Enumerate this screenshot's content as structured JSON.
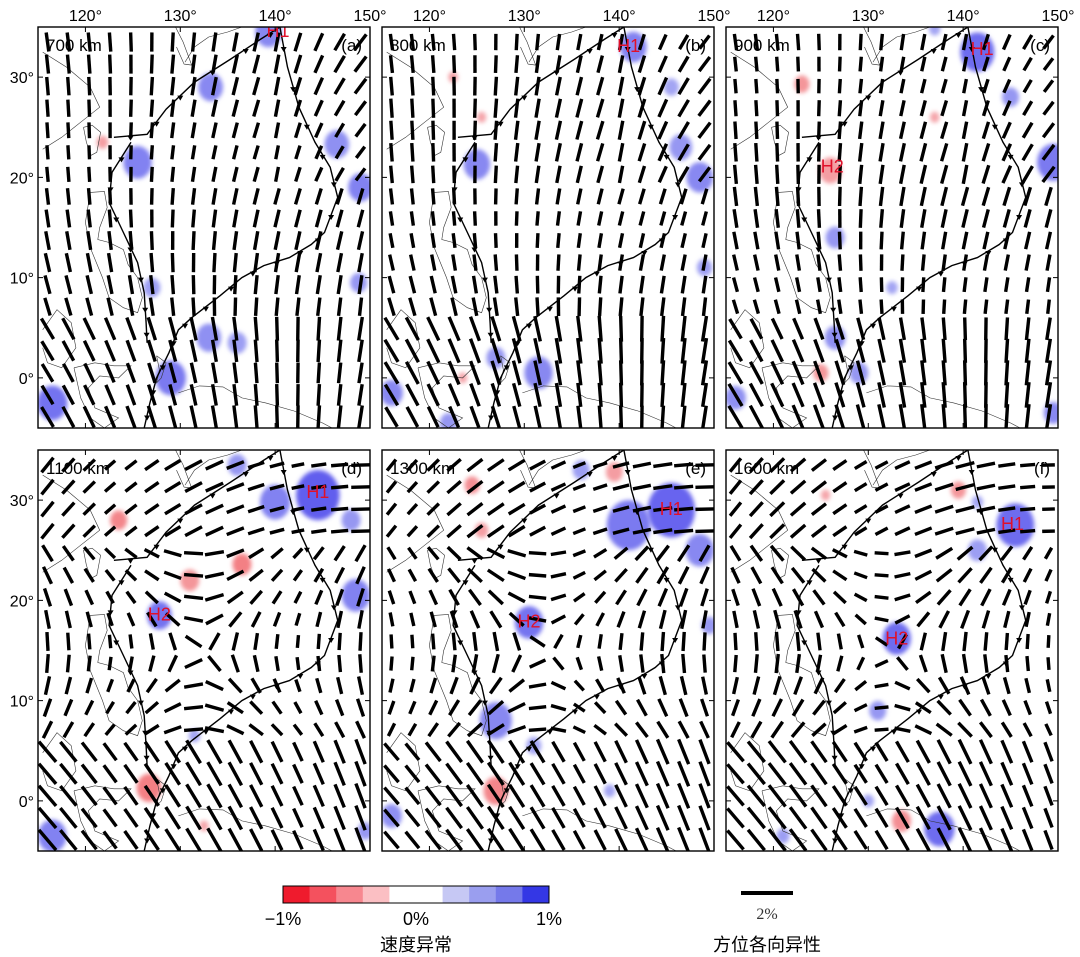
{
  "figure": {
    "lon_ticks": [
      "120°",
      "130°",
      "140°",
      "150°"
    ],
    "lat_ticks": [
      "30°",
      "20°",
      "10°",
      "0°"
    ],
    "lon_range": [
      115,
      150
    ],
    "lat_range": [
      -5,
      35
    ],
    "panels": [
      {
        "letter": "(a)",
        "depth": "700 km",
        "labels": [
          {
            "text": "H1",
            "lon": 140.3,
            "lat": 34.0
          }
        ],
        "anomalies": [
          {
            "lon": 139.3,
            "lat": 34.5,
            "r": 1.4,
            "v": 0.5
          },
          {
            "lon": 133.2,
            "lat": 29.0,
            "r": 1.3,
            "v": 0.5
          },
          {
            "lon": 125.5,
            "lat": 21.5,
            "r": 1.5,
            "v": 0.55
          },
          {
            "lon": 146.5,
            "lat": 23.3,
            "r": 1.3,
            "v": 0.45
          },
          {
            "lon": 149.0,
            "lat": 19.0,
            "r": 1.3,
            "v": 0.55
          },
          {
            "lon": 127.0,
            "lat": 9.0,
            "r": 0.9,
            "v": 0.35
          },
          {
            "lon": 148.8,
            "lat": 9.5,
            "r": 0.9,
            "v": 0.4
          },
          {
            "lon": 133.0,
            "lat": 4.0,
            "r": 1.3,
            "v": 0.45
          },
          {
            "lon": 136.0,
            "lat": 3.5,
            "r": 1.0,
            "v": 0.35
          },
          {
            "lon": 129.0,
            "lat": 0.0,
            "r": 1.6,
            "v": 0.6
          },
          {
            "lon": 116.5,
            "lat": -2.5,
            "r": 1.6,
            "v": 0.65
          },
          {
            "lon": 121.8,
            "lat": 23.5,
            "r": 0.6,
            "v": -0.3
          }
        ]
      },
      {
        "letter": "(b)",
        "depth": "800 km",
        "labels": [
          {
            "text": "H1",
            "lon": 141.0,
            "lat": 32.5
          }
        ],
        "anomalies": [
          {
            "lon": 141.5,
            "lat": 33.0,
            "r": 1.4,
            "v": 0.55
          },
          {
            "lon": 145.5,
            "lat": 29.0,
            "r": 0.8,
            "v": 0.3
          },
          {
            "lon": 125.0,
            "lat": 21.3,
            "r": 1.4,
            "v": 0.5
          },
          {
            "lon": 146.5,
            "lat": 23.0,
            "r": 1.2,
            "v": 0.4
          },
          {
            "lon": 148.5,
            "lat": 20.0,
            "r": 1.4,
            "v": 0.5
          },
          {
            "lon": 149.0,
            "lat": 11.0,
            "r": 0.8,
            "v": 0.35
          },
          {
            "lon": 131.5,
            "lat": 0.5,
            "r": 1.5,
            "v": 0.5
          },
          {
            "lon": 127.0,
            "lat": 2.0,
            "r": 1.0,
            "v": 0.4
          },
          {
            "lon": 116.0,
            "lat": -1.5,
            "r": 1.2,
            "v": 0.5
          },
          {
            "lon": 122.0,
            "lat": -4.5,
            "r": 0.9,
            "v": 0.4
          },
          {
            "lon": 122.5,
            "lat": 30.0,
            "r": 0.5,
            "v": -0.3
          },
          {
            "lon": 125.5,
            "lat": 26.0,
            "r": 0.5,
            "v": -0.25
          },
          {
            "lon": 123.5,
            "lat": 0.0,
            "r": 0.5,
            "v": -0.25
          }
        ]
      },
      {
        "letter": "(c)",
        "depth": "900 km",
        "labels": [
          {
            "text": "H1",
            "lon": 142.0,
            "lat": 32.2
          },
          {
            "text": "H2",
            "lon": 126.2,
            "lat": 20.5
          }
        ],
        "anomalies": [
          {
            "lon": 141.5,
            "lat": 32.5,
            "r": 1.8,
            "v": 0.7
          },
          {
            "lon": 137.0,
            "lat": 34.8,
            "r": 0.6,
            "v": 0.3
          },
          {
            "lon": 145.0,
            "lat": 28.0,
            "r": 0.9,
            "v": 0.4
          },
          {
            "lon": 149.5,
            "lat": 21.5,
            "r": 1.7,
            "v": 0.6
          },
          {
            "lon": 126.0,
            "lat": 20.7,
            "r": 1.2,
            "v": -0.3
          },
          {
            "lon": 123.0,
            "lat": 29.3,
            "r": 0.8,
            "v": -0.35
          },
          {
            "lon": 137.0,
            "lat": 26.0,
            "r": 0.5,
            "v": -0.25
          },
          {
            "lon": 126.5,
            "lat": 14.0,
            "r": 1.0,
            "v": 0.4
          },
          {
            "lon": 126.5,
            "lat": 4.0,
            "r": 1.1,
            "v": 0.45
          },
          {
            "lon": 129.0,
            "lat": 0.5,
            "r": 1.0,
            "v": 0.4
          },
          {
            "lon": 125.0,
            "lat": 0.5,
            "r": 0.8,
            "v": -0.35
          },
          {
            "lon": 149.5,
            "lat": -3.5,
            "r": 1.0,
            "v": 0.5
          },
          {
            "lon": 116.0,
            "lat": -2.0,
            "r": 1.1,
            "v": 0.45
          },
          {
            "lon": 132.5,
            "lat": 9.0,
            "r": 0.6,
            "v": 0.3
          }
        ]
      },
      {
        "letter": "(d)",
        "depth": "1100 km",
        "labels": [
          {
            "text": "H1",
            "lon": 144.5,
            "lat": 30.2
          },
          {
            "text": "H2",
            "lon": 127.8,
            "lat": 18.0
          }
        ],
        "anomalies": [
          {
            "lon": 144.5,
            "lat": 30.5,
            "r": 2.3,
            "v": 0.8
          },
          {
            "lon": 140.0,
            "lat": 29.8,
            "r": 1.6,
            "v": 0.55
          },
          {
            "lon": 136.0,
            "lat": 33.5,
            "r": 1.0,
            "v": 0.4
          },
          {
            "lon": 148.0,
            "lat": 28.0,
            "r": 1.0,
            "v": 0.4
          },
          {
            "lon": 148.5,
            "lat": 20.5,
            "r": 1.5,
            "v": 0.55
          },
          {
            "lon": 127.8,
            "lat": 18.5,
            "r": 1.3,
            "v": 0.65
          },
          {
            "lon": 123.5,
            "lat": 28.0,
            "r": 0.9,
            "v": -0.45
          },
          {
            "lon": 131.0,
            "lat": 22.0,
            "r": 1.0,
            "v": -0.35
          },
          {
            "lon": 136.5,
            "lat": 23.6,
            "r": 1.0,
            "v": -0.5
          },
          {
            "lon": 126.7,
            "lat": 1.3,
            "r": 1.3,
            "v": -0.5
          },
          {
            "lon": 131.5,
            "lat": 6.5,
            "r": 0.6,
            "v": 0.3
          },
          {
            "lon": 116.5,
            "lat": -3.5,
            "r": 1.5,
            "v": 0.55
          },
          {
            "lon": 149.5,
            "lat": -3.0,
            "r": 0.8,
            "v": 0.4
          },
          {
            "lon": 132.5,
            "lat": -2.5,
            "r": 0.5,
            "v": -0.25
          }
        ]
      },
      {
        "letter": "(e)",
        "depth": "1300 km",
        "labels": [
          {
            "text": "H1",
            "lon": 145.5,
            "lat": 28.5
          },
          {
            "text": "H2",
            "lon": 130.5,
            "lat": 17.3
          }
        ],
        "anomalies": [
          {
            "lon": 145.5,
            "lat": 29.0,
            "r": 2.5,
            "v": 0.75
          },
          {
            "lon": 141.0,
            "lat": 27.5,
            "r": 2.3,
            "v": 0.6
          },
          {
            "lon": 148.5,
            "lat": 25.0,
            "r": 1.5,
            "v": 0.5
          },
          {
            "lon": 130.5,
            "lat": 17.8,
            "r": 1.5,
            "v": 0.65
          },
          {
            "lon": 124.5,
            "lat": 31.5,
            "r": 0.8,
            "v": -0.4
          },
          {
            "lon": 125.5,
            "lat": 27.0,
            "r": 0.7,
            "v": -0.3
          },
          {
            "lon": 136.0,
            "lat": 33.0,
            "r": 0.9,
            "v": 0.35
          },
          {
            "lon": 139.5,
            "lat": 32.8,
            "r": 0.9,
            "v": -0.3
          },
          {
            "lon": 149.5,
            "lat": 17.5,
            "r": 0.8,
            "v": 0.4
          },
          {
            "lon": 127.0,
            "lat": 8.0,
            "r": 1.7,
            "v": 0.5
          },
          {
            "lon": 127.0,
            "lat": 1.0,
            "r": 1.3,
            "v": -0.45
          },
          {
            "lon": 131.0,
            "lat": 5.5,
            "r": 0.8,
            "v": 0.3
          },
          {
            "lon": 116.0,
            "lat": -1.5,
            "r": 1.1,
            "v": 0.45
          },
          {
            "lon": 139.0,
            "lat": 1.0,
            "r": 0.6,
            "v": 0.3
          }
        ]
      },
      {
        "letter": "(f)",
        "depth": "1600 km",
        "labels": [
          {
            "text": "H1",
            "lon": 145.2,
            "lat": 27.0
          },
          {
            "text": "H2",
            "lon": 133.0,
            "lat": 15.6
          }
        ],
        "anomalies": [
          {
            "lon": 145.5,
            "lat": 27.5,
            "r": 2.0,
            "v": 0.7
          },
          {
            "lon": 141.5,
            "lat": 25.0,
            "r": 1.0,
            "v": 0.35
          },
          {
            "lon": 133.0,
            "lat": 16.2,
            "r": 1.5,
            "v": 0.7
          },
          {
            "lon": 131.0,
            "lat": 9.0,
            "r": 0.9,
            "v": 0.4
          },
          {
            "lon": 139.5,
            "lat": 31.0,
            "r": 0.8,
            "v": -0.35
          },
          {
            "lon": 141.5,
            "lat": 29.8,
            "r": 0.6,
            "v": 0.3
          },
          {
            "lon": 125.5,
            "lat": 30.5,
            "r": 0.5,
            "v": -0.25
          },
          {
            "lon": 137.5,
            "lat": -2.8,
            "r": 1.6,
            "v": 0.7
          },
          {
            "lon": 133.5,
            "lat": -2.0,
            "r": 1.0,
            "v": -0.4
          },
          {
            "lon": 130.0,
            "lat": 0.0,
            "r": 0.6,
            "v": 0.3
          },
          {
            "lon": 121.0,
            "lat": -3.5,
            "r": 0.7,
            "v": 0.35
          }
        ]
      }
    ]
  },
  "legend": {
    "colorbar": {
      "min_label": "−1%",
      "mid_label": "0%",
      "max_label": "1%",
      "caption": "速度异常",
      "colors": [
        "#ef1b2d",
        "#f4515e",
        "#f7878f",
        "#fbbfc3",
        "#ffffff",
        "#ffffff",
        "#c6c8f4",
        "#9a9eef",
        "#7579ea",
        "#3437e5"
      ]
    },
    "scale": {
      "label": "2%",
      "caption": "方位各向异性"
    }
  },
  "colors": {
    "coast": "#000000",
    "anomaly_label": "#e0102a",
    "fast_axis": "#000000"
  }
}
